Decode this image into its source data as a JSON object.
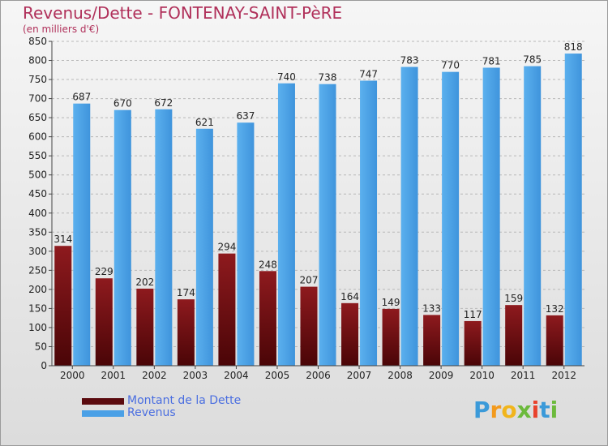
{
  "header": {
    "title": "Revenus/Dette - FONTENAY-SAINT-PèRE",
    "subtitle": "(en milliers d'€)"
  },
  "chart_data": {
    "type": "bar",
    "categories": [
      "2000",
      "2001",
      "2002",
      "2003",
      "2004",
      "2005",
      "2006",
      "2007",
      "2008",
      "2009",
      "2010",
      "2011",
      "2012"
    ],
    "series": [
      {
        "name": "Montant de la Dette",
        "values": [
          314,
          229,
          202,
          174,
          294,
          248,
          207,
          164,
          149,
          133,
          117,
          159,
          132
        ],
        "color": "#7a0f14"
      },
      {
        "name": "Revenus",
        "values": [
          687,
          670,
          672,
          621,
          637,
          740,
          738,
          747,
          783,
          770,
          781,
          785,
          818
        ],
        "color": "#4aa0e6"
      }
    ],
    "ylim": [
      0,
      850
    ],
    "yticks": [
      0,
      50,
      100,
      150,
      200,
      250,
      300,
      350,
      400,
      450,
      500,
      550,
      600,
      650,
      700,
      750,
      800,
      850
    ],
    "grid": true,
    "legend": "bottom-left"
  },
  "legend": {
    "items": [
      {
        "label": "Montant de la Dette",
        "color": "#5a0a0e"
      },
      {
        "label": "Revenus",
        "color": "#4aa0e6"
      }
    ]
  },
  "logo": {
    "letters": [
      "P",
      "r",
      "o",
      "x",
      "i",
      "t",
      "i"
    ],
    "colors": [
      "#3b9ad9",
      "#f39a1c",
      "#f1b51c",
      "#6cba3c",
      "#e8422c",
      "#3b9ad9",
      "#6cba3c"
    ]
  }
}
